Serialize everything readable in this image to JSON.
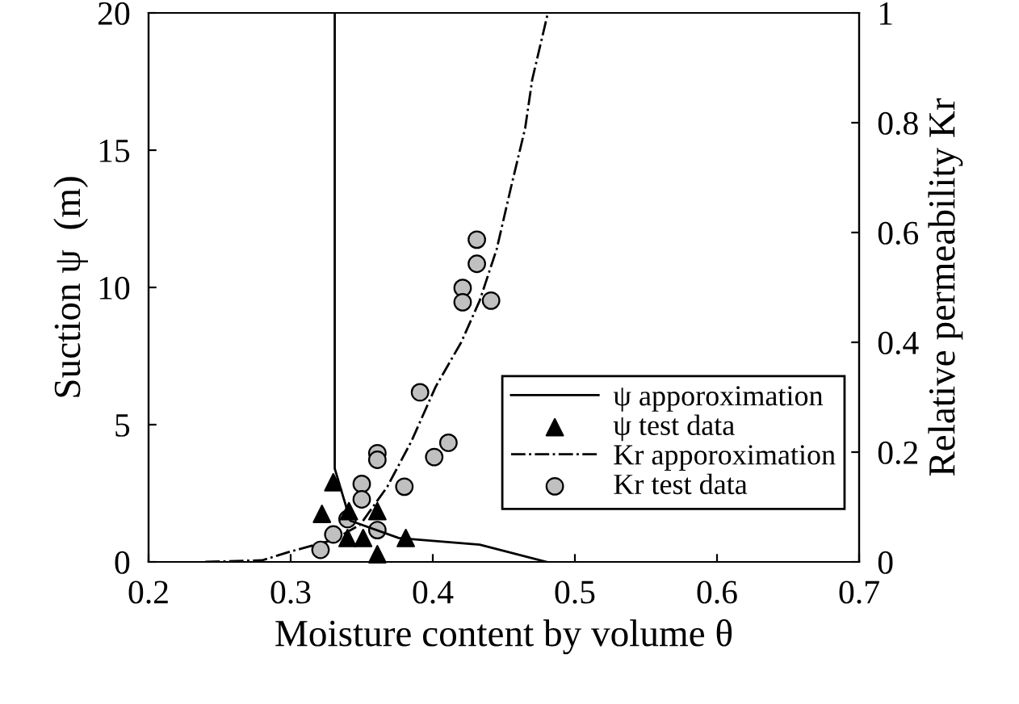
{
  "chart_data": {
    "type": "line",
    "xlabel": "Moisture content by volume θ",
    "ylabel": "Suction ψ  (m)",
    "y2label": "Relative permeability Kr",
    "xlim": [
      0.2,
      0.7
    ],
    "xticks": [
      0.2,
      0.3,
      0.4,
      0.5,
      0.6,
      0.7
    ],
    "ylim": [
      0,
      20
    ],
    "yticks": [
      0,
      5,
      10,
      15,
      20
    ],
    "y2lim": [
      0,
      1
    ],
    "y2ticks": [
      0,
      0.2,
      0.4,
      0.6,
      0.8,
      1
    ],
    "grid": false,
    "legend": "bottom right",
    "series": [
      {
        "name": "ψ apporoximation",
        "color": "#000000",
        "line_style": "solid",
        "marker": "none",
        "x": [
          0.331,
          0.331,
          0.342,
          0.376,
          0.433,
          0.48
        ],
        "values": [
          20,
          3.4,
          1.5,
          0.87,
          0.63,
          0
        ]
      },
      {
        "name": "ψ test data",
        "type": "scatter",
        "color": "#000000",
        "marker": "triangle",
        "x": [
          0.33,
          0.322,
          0.341,
          0.361,
          0.34,
          0.351,
          0.361,
          0.381
        ],
        "values": [
          2.9,
          1.75,
          1.85,
          1.85,
          0.87,
          0.87,
          0.28,
          0.87
        ]
      },
      {
        "name": "Kr apporoximation",
        "axis": "y2",
        "color": "#000000",
        "line_style": "dashdot",
        "marker": "none",
        "x": [
          0.24,
          0.28,
          0.3,
          0.33,
          0.349,
          0.368,
          0.385,
          0.402,
          0.42,
          0.433,
          0.445,
          0.455,
          0.465,
          0.47,
          0.481
        ],
        "values": [
          0,
          0.003,
          0.019,
          0.04,
          0.068,
          0.137,
          0.22,
          0.319,
          0.4,
          0.476,
          0.57,
          0.682,
          0.79,
          0.879,
          1.0
        ]
      },
      {
        "name": "Kr test data",
        "type": "scatter",
        "axis": "y2",
        "color": "#c0c0c0",
        "marker": "circle",
        "x": [
          0.431,
          0.431,
          0.421,
          0.421,
          0.441,
          0.391,
          0.411,
          0.401,
          0.361,
          0.361,
          0.38,
          0.35,
          0.35,
          0.34,
          0.33,
          0.361,
          0.321
        ],
        "values": [
          0.587,
          0.543,
          0.499,
          0.473,
          0.476,
          0.309,
          0.217,
          0.191,
          0.198,
          0.186,
          0.137,
          0.142,
          0.114,
          0.078,
          0.05,
          0.058,
          0.022
        ]
      }
    ]
  }
}
